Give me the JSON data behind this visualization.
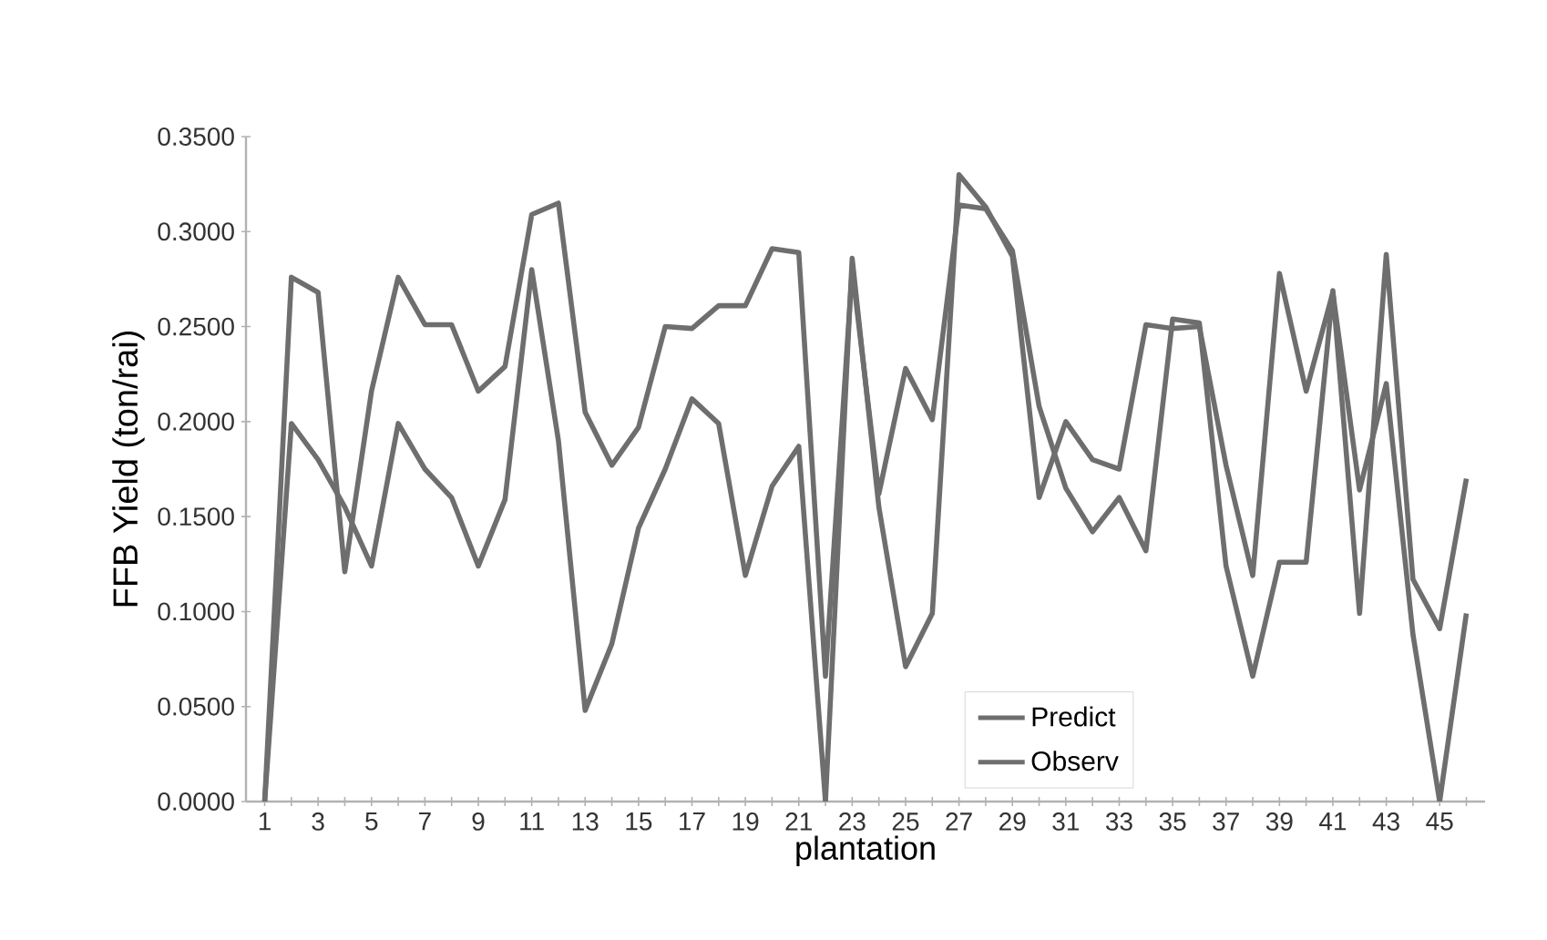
{
  "chart_data": {
    "type": "line",
    "xlabel": "plantation",
    "ylabel": "FFB Yield (ton/rai)",
    "categories": [
      "1",
      null,
      "3",
      null,
      "5",
      null,
      "7",
      null,
      "9",
      null,
      "11",
      null,
      "13",
      null,
      "15",
      null,
      "17",
      null,
      "19",
      null,
      "21",
      null,
      "23",
      null,
      "25",
      null,
      "27",
      null,
      "29",
      null,
      "31",
      null,
      "33",
      null,
      "35",
      null,
      "37",
      null,
      "39",
      null,
      "41",
      null,
      "43",
      null,
      "45",
      null
    ],
    "series": [
      {
        "name": "Predict",
        "color": "#6e6e6e",
        "values": [
          0,
          0.276,
          0.268,
          0.121,
          0.216,
          0.276,
          0.251,
          0.251,
          0.216,
          0.229,
          0.309,
          0.315,
          0.205,
          0.177,
          0.197,
          0.25,
          0.249,
          0.261,
          0.261,
          0.291,
          0.289,
          0.066,
          0.28,
          0.162,
          0.228,
          0.201,
          0.314,
          0.312,
          0.29,
          0.208,
          0.165,
          0.142,
          0.16,
          0.132,
          0.254,
          0.252,
          0.124,
          0.066,
          0.126,
          0.126,
          0.269,
          0.099,
          0.288,
          0.117,
          0.091,
          0.17
        ]
      },
      {
        "name": "Observ",
        "color": "#6e6e6e",
        "values": [
          0,
          0.199,
          0.18,
          0.155,
          0.124,
          0.199,
          0.175,
          0.16,
          0.124,
          0.159,
          0.28,
          0.19,
          0.048,
          0.083,
          0.144,
          0.175,
          0.212,
          0.199,
          0.119,
          0.166,
          0.187,
          0,
          0.286,
          0.155,
          0.071,
          0.099,
          0.33,
          0.313,
          0.287,
          0.16,
          0.2,
          0.18,
          0.175,
          0.251,
          0.249,
          0.25,
          0.177,
          0.119,
          0.278,
          0.216,
          0.268,
          0.164,
          0.22,
          0.088,
          0,
          0.099
        ]
      }
    ],
    "ylim": [
      0,
      0.35
    ],
    "yticks": [
      {
        "value": 0,
        "label": "0.0000"
      },
      {
        "value": 0.05,
        "label": "0.0500"
      },
      {
        "value": 0.1,
        "label": "0.1000"
      },
      {
        "value": 0.15,
        "label": "0.1500"
      },
      {
        "value": 0.2,
        "label": "0.2000"
      },
      {
        "value": 0.25,
        "label": "0.2500"
      },
      {
        "value": 0.3,
        "label": "0.3000"
      },
      {
        "value": 0.35,
        "label": "0.3500"
      }
    ],
    "grid": false,
    "legend": "bottom right",
    "marker": "none",
    "line_style": "solid"
  }
}
